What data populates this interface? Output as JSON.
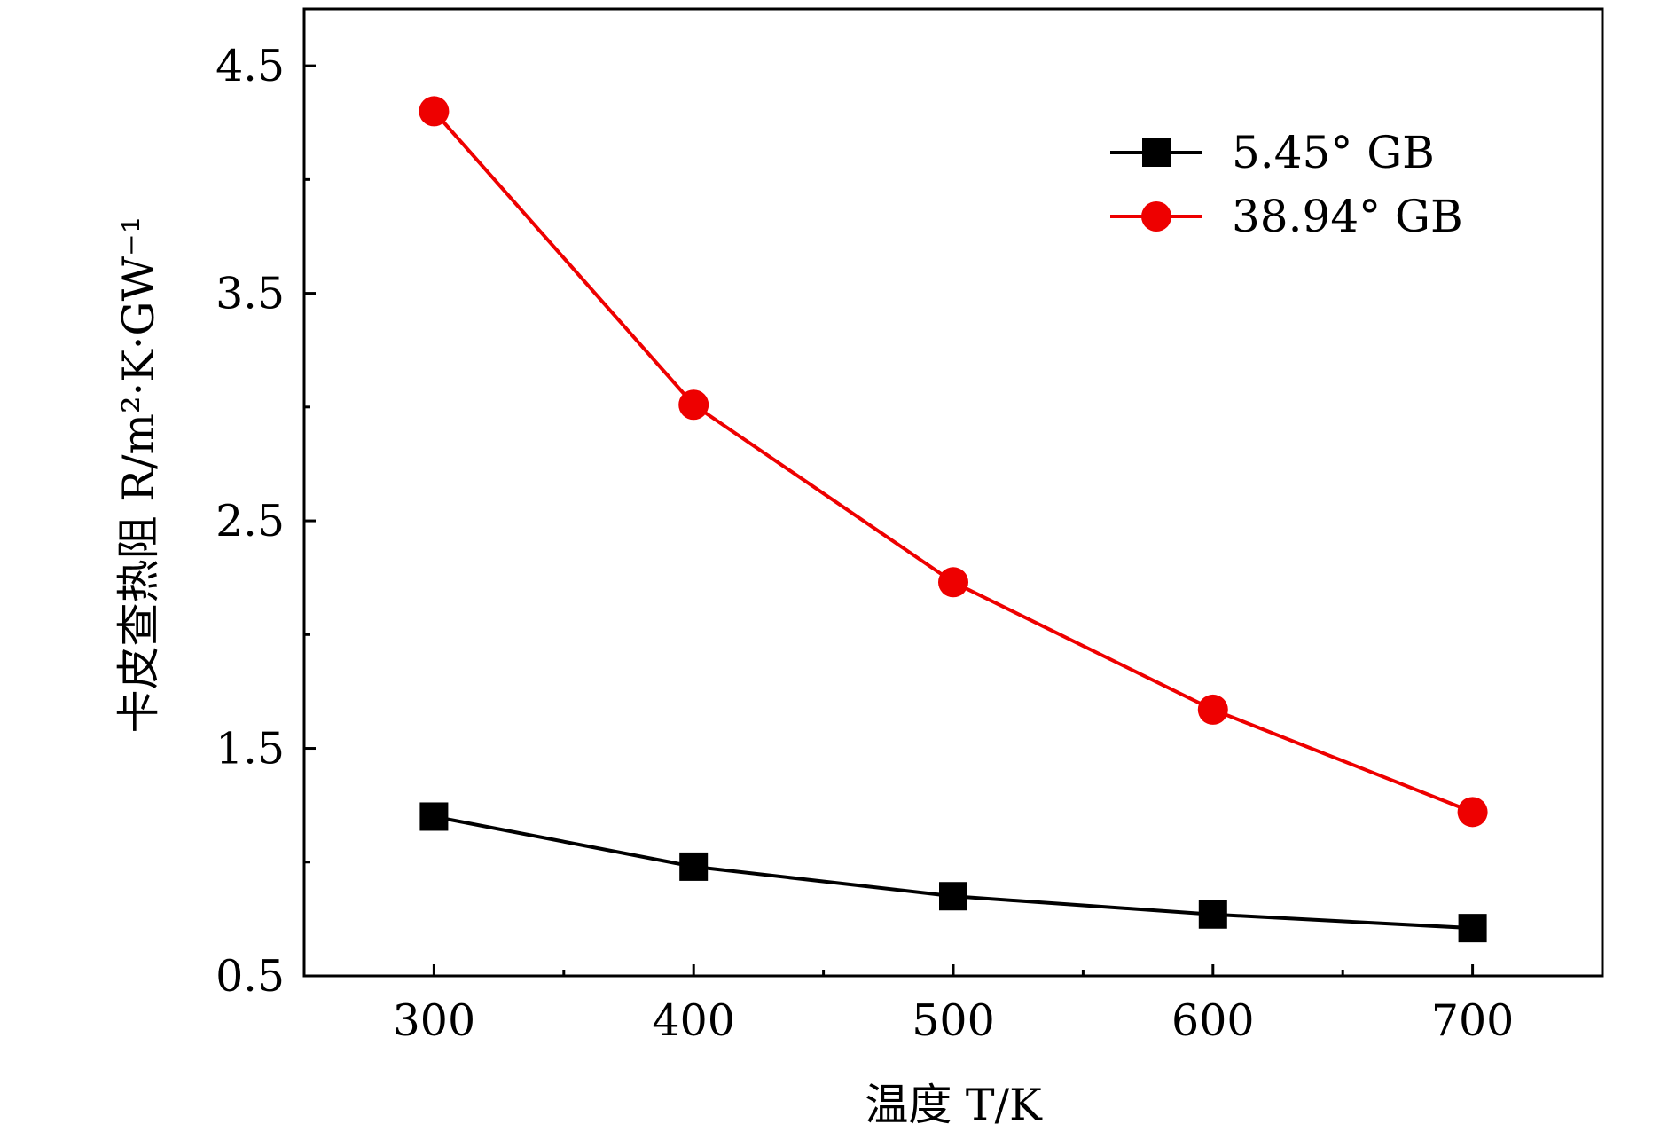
{
  "chart_data": {
    "type": "line",
    "x": [
      300,
      400,
      500,
      600,
      700
    ],
    "xlim": [
      250,
      750
    ],
    "ylim": [
      0.5,
      4.75
    ],
    "x_ticks": [
      300,
      400,
      500,
      600,
      700
    ],
    "x_tick_labels": [
      "300",
      "400",
      "500",
      "600",
      "700"
    ],
    "y_ticks": [
      0.5,
      1.5,
      2.5,
      3.5,
      4.5
    ],
    "y_tick_labels": [
      "0.5",
      "1.5",
      "2.5",
      "3.5",
      "4.5"
    ],
    "xlabel": "温度 T/K",
    "ylabel": "卡皮查热阻 R/m²·K·GW⁻¹",
    "grid": false,
    "legend_position": "top-right",
    "series": [
      {
        "name": "5.45° GB",
        "values": [
          1.2,
          0.98,
          0.85,
          0.77,
          0.71
        ],
        "color": "#000000",
        "marker": "square"
      },
      {
        "name": "38.94° GB",
        "values": [
          4.3,
          3.01,
          2.23,
          1.67,
          1.22
        ],
        "color": "#ee0000",
        "marker": "circle"
      }
    ]
  }
}
